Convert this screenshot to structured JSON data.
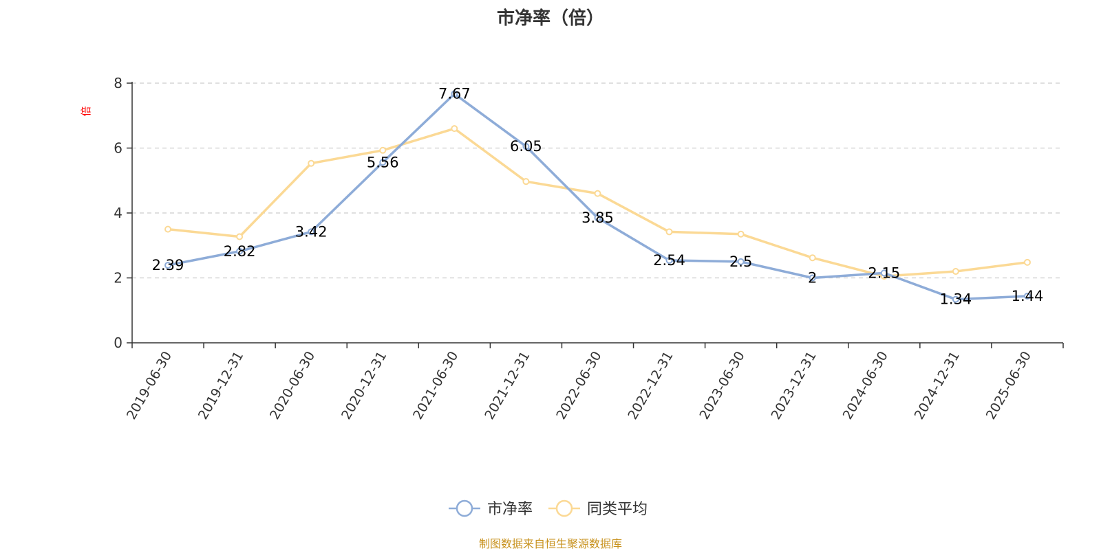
{
  "chart_data": {
    "type": "line",
    "title": "市净率（倍）",
    "ylabel": "倍",
    "ylim": [
      0,
      8
    ],
    "yticks": [
      0,
      2,
      4,
      6,
      8
    ],
    "grid": true,
    "legend_position": "bottom-center",
    "categories": [
      "2019-06-30",
      "2019-12-31",
      "2020-06-30",
      "2020-12-31",
      "2021-06-30",
      "2021-12-31",
      "2022-06-30",
      "2022-12-31",
      "2023-06-30",
      "2023-12-31",
      "2024-06-30",
      "2024-12-31",
      "2025-06-30"
    ],
    "series": [
      {
        "name": "市净率",
        "color": "#8eacd8",
        "values": [
          2.39,
          2.82,
          3.42,
          5.56,
          7.67,
          6.05,
          3.85,
          2.54,
          2.5,
          2,
          2.15,
          1.34,
          1.44
        ],
        "data_labels": [
          "2.39",
          "2.82",
          "3.42",
          "5.56",
          "7.67",
          "6.05",
          "3.85",
          "2.54",
          "2.5",
          "2",
          "2.15",
          "1.34",
          "1.44"
        ]
      },
      {
        "name": "同类平均",
        "color": "#fbd995",
        "values": [
          3.5,
          3.27,
          5.53,
          5.93,
          6.6,
          4.97,
          4.6,
          3.42,
          3.35,
          2.62,
          2.05,
          2.2,
          2.48
        ]
      }
    ]
  },
  "source_note": "制图数据来自恒生聚源数据库"
}
